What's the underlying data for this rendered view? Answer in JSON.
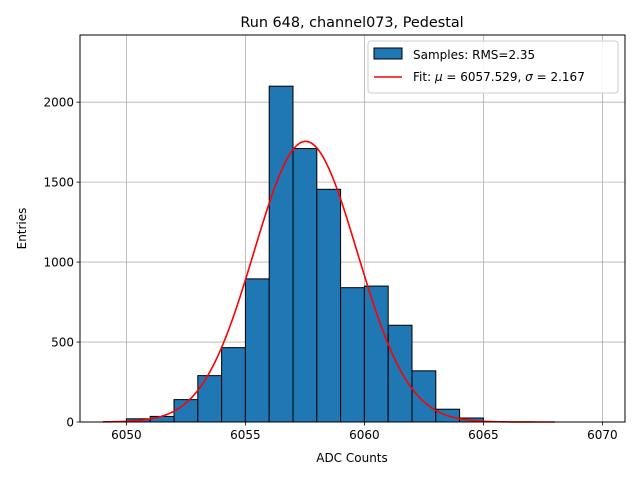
{
  "chart_data": {
    "type": "bar",
    "title": "Run 648, channel073, Pedestal",
    "xlabel": "ADC Counts",
    "ylabel": "Entries",
    "xlim": [
      6048.05,
      6070.95
    ],
    "ylim": [
      0,
      2420
    ],
    "x_ticks": [
      6050,
      6055,
      6060,
      6065,
      6070
    ],
    "y_ticks": [
      0,
      500,
      1000,
      1500,
      2000
    ],
    "grid": true,
    "legend_position": "top-right",
    "histogram": {
      "name": "Samples: RMS=2.35",
      "color": "#1f77b4",
      "bin_width": 1,
      "bins": [
        {
          "x0": 6050,
          "x1": 6051,
          "value": 20
        },
        {
          "x0": 6051,
          "x1": 6052,
          "value": 35
        },
        {
          "x0": 6052,
          "x1": 6053,
          "value": 140
        },
        {
          "x0": 6053,
          "x1": 6054,
          "value": 290
        },
        {
          "x0": 6054,
          "x1": 6055,
          "value": 465
        },
        {
          "x0": 6055,
          "x1": 6056,
          "value": 895
        },
        {
          "x0": 6056,
          "x1": 6057,
          "value": 2100
        },
        {
          "x0": 6057,
          "x1": 6058,
          "value": 1710
        },
        {
          "x0": 6058,
          "x1": 6059,
          "value": 1455
        },
        {
          "x0": 6059,
          "x1": 6060,
          "value": 840
        },
        {
          "x0": 6060,
          "x1": 6061,
          "value": 850
        },
        {
          "x0": 6061,
          "x1": 6062,
          "value": 605
        },
        {
          "x0": 6062,
          "x1": 6063,
          "value": 320
        },
        {
          "x0": 6063,
          "x1": 6064,
          "value": 80
        },
        {
          "x0": 6064,
          "x1": 6065,
          "value": 25
        }
      ]
    },
    "fit": {
      "name_prefix": "Fit: ",
      "mu_symbol": "μ",
      "sigma_symbol": "σ",
      "mu": 6057.529,
      "sigma": 2.167,
      "amplitude": 1755,
      "x_range": [
        6049,
        6068
      ],
      "color": "#ff0000"
    }
  }
}
